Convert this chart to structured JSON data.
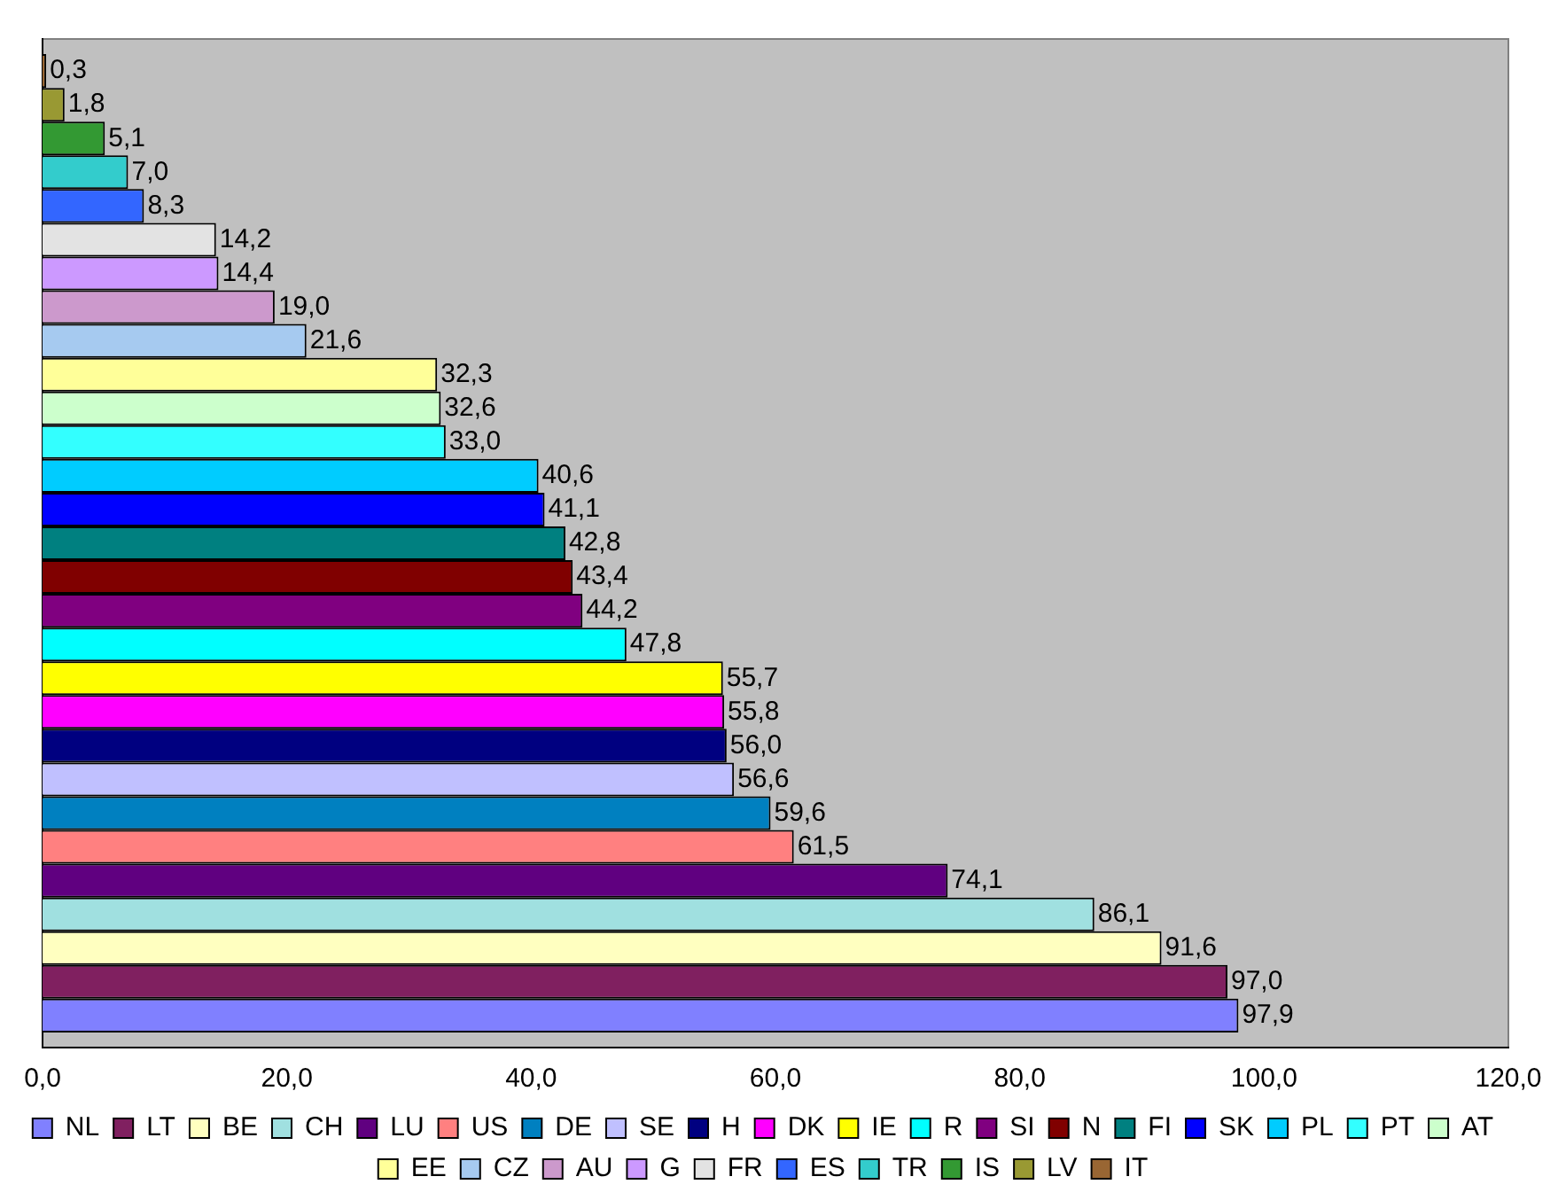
{
  "chart_data": {
    "type": "bar",
    "orientation": "horizontal",
    "categories": [
      null
    ],
    "xlim": [
      0,
      120
    ],
    "xticks": [
      {
        "value": 0,
        "label": "0,0"
      },
      {
        "value": 20,
        "label": "20,0"
      },
      {
        "value": 40,
        "label": "40,0"
      },
      {
        "value": 60,
        "label": "60,0"
      },
      {
        "value": 80,
        "label": "80,0"
      },
      {
        "value": 100,
        "label": "100,0"
      },
      {
        "value": 120,
        "label": "120,0"
      }
    ],
    "grid": false,
    "legend": "bottom",
    "series": [
      {
        "name": "NL",
        "color": "#8080ff",
        "values": [
          97.9
        ],
        "value_labels": [
          "97,9"
        ]
      },
      {
        "name": "LT",
        "color": "#802060",
        "values": [
          97.0
        ],
        "value_labels": [
          "97,0"
        ]
      },
      {
        "name": "BE",
        "color": "#ffffc0",
        "values": [
          91.6
        ],
        "value_labels": [
          "91,6"
        ]
      },
      {
        "name": "CH",
        "color": "#a0e0e0",
        "values": [
          86.1
        ],
        "value_labels": [
          "86,1"
        ]
      },
      {
        "name": "LU",
        "color": "#600080",
        "values": [
          74.1
        ],
        "value_labels": [
          "74,1"
        ]
      },
      {
        "name": "US",
        "color": "#ff8080",
        "values": [
          61.5
        ],
        "value_labels": [
          "61,5"
        ]
      },
      {
        "name": "DE",
        "color": "#0080c0",
        "values": [
          59.6
        ],
        "value_labels": [
          "59,6"
        ]
      },
      {
        "name": "SE",
        "color": "#c0c0ff",
        "values": [
          56.6
        ],
        "value_labels": [
          "56,6"
        ]
      },
      {
        "name": "H",
        "color": "#000080",
        "values": [
          56.0
        ],
        "value_labels": [
          "56,0"
        ]
      },
      {
        "name": "DK",
        "color": "#ff00ff",
        "values": [
          55.8
        ],
        "value_labels": [
          "55,8"
        ]
      },
      {
        "name": "IE",
        "color": "#ffff00",
        "values": [
          55.7
        ],
        "value_labels": [
          "55,7"
        ]
      },
      {
        "name": "R",
        "color": "#00ffff",
        "values": [
          47.8
        ],
        "value_labels": [
          "47,8"
        ]
      },
      {
        "name": "SI",
        "color": "#800080",
        "values": [
          44.2
        ],
        "value_labels": [
          "44,2"
        ]
      },
      {
        "name": "N",
        "color": "#800000",
        "values": [
          43.4
        ],
        "value_labels": [
          "43,4"
        ]
      },
      {
        "name": "FI",
        "color": "#008080",
        "values": [
          42.8
        ],
        "value_labels": [
          "42,8"
        ]
      },
      {
        "name": "SK",
        "color": "#0000ff",
        "values": [
          41.1
        ],
        "value_labels": [
          "41,1"
        ]
      },
      {
        "name": "PL",
        "color": "#00ccff",
        "values": [
          40.6
        ],
        "value_labels": [
          "40,6"
        ]
      },
      {
        "name": "PT",
        "color": "#33ffff",
        "values": [
          33.0
        ],
        "value_labels": [
          "33,0"
        ]
      },
      {
        "name": "AT",
        "color": "#ccffcc",
        "values": [
          32.6
        ],
        "value_labels": [
          "32,6"
        ]
      },
      {
        "name": "EE",
        "color": "#ffff99",
        "values": [
          32.3
        ],
        "value_labels": [
          "32,3"
        ]
      },
      {
        "name": "CZ",
        "color": "#a6caf0",
        "values": [
          21.6
        ],
        "value_labels": [
          "21,6"
        ]
      },
      {
        "name": "AU",
        "color": "#cc99cc",
        "values": [
          19.0
        ],
        "value_labels": [
          "19,0"
        ]
      },
      {
        "name": "G",
        "color": "#cc99ff",
        "values": [
          14.4
        ],
        "value_labels": [
          "14,4"
        ]
      },
      {
        "name": "FR",
        "color": "#e3e3e3",
        "values": [
          14.2
        ],
        "value_labels": [
          "14,2"
        ]
      },
      {
        "name": "ES",
        "color": "#3366ff",
        "values": [
          8.3
        ],
        "value_labels": [
          "8,3"
        ]
      },
      {
        "name": "TR",
        "color": "#33cccc",
        "values": [
          7.0
        ],
        "value_labels": [
          "7,0"
        ]
      },
      {
        "name": "IS",
        "color": "#339933",
        "values": [
          5.1
        ],
        "value_labels": [
          "5,1"
        ]
      },
      {
        "name": "LV",
        "color": "#999933",
        "values": [
          1.8
        ],
        "value_labels": [
          "1,8"
        ]
      },
      {
        "name": "IT",
        "color": "#996633",
        "values": [
          0.3
        ],
        "value_labels": [
          "0,3"
        ]
      }
    ]
  }
}
